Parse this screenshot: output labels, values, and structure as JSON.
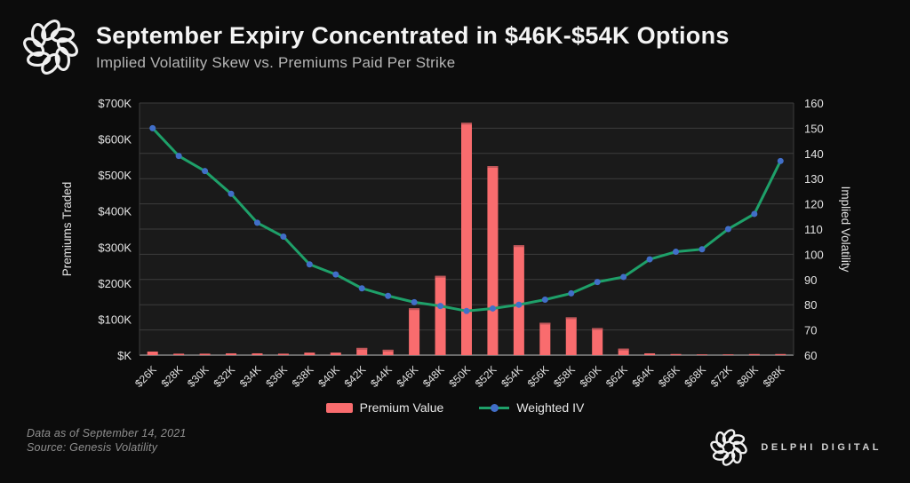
{
  "header": {
    "title": "September Expiry Concentrated in $46K-$54K Options",
    "subtitle": "Implied Volatility Skew vs. Premiums Paid Per Strike"
  },
  "legend": [
    {
      "label": "Premium Value",
      "type": "bar"
    },
    {
      "label": "Weighted IV",
      "type": "line"
    }
  ],
  "footer": {
    "note": "Data as of September 14, 2021",
    "source": "Source: Genesis Volatility",
    "brand": "DELPHI DIGITAL"
  },
  "colors": {
    "background": "#0c0c0c",
    "plot_bg": "#1a1a1a",
    "gridline": "#3c3c3c",
    "axis_line": "#8a8a8a",
    "bar": "#f96c6e",
    "bar_cap": "#bf5659",
    "line": "#1ea069",
    "marker": "#416ec8",
    "axis_text": "#e2e2e2",
    "title_text": "#f4f4f4",
    "subtitle_text": "#b5b5b5",
    "footer_text": "#8f8f8f"
  },
  "chart_data": {
    "type": "combo-bar-line",
    "title": "September Expiry Concentrated in $46K-$54K Options",
    "subtitle": "Implied Volatility Skew vs. Premiums Paid Per Strike",
    "categories": [
      "$26K",
      "$28K",
      "$30K",
      "$32K",
      "$34K",
      "$36K",
      "$38K",
      "$40K",
      "$42K",
      "$44K",
      "$46K",
      "$48K",
      "$50K",
      "$52K",
      "$54K",
      "$56K",
      "$58K",
      "$60K",
      "$62K",
      "$64K",
      "$66K",
      "$68K",
      "$72K",
      "$80K",
      "$88K"
    ],
    "series": [
      {
        "name": "Premium Value",
        "type": "bar",
        "axis": "left",
        "values": [
          10000,
          4000,
          4000,
          5000,
          5000,
          4000,
          7000,
          7000,
          20000,
          15000,
          130000,
          220000,
          645000,
          525000,
          305000,
          90000,
          105000,
          75000,
          18000,
          5000,
          3000,
          2000,
          2000,
          3000,
          3000
        ]
      },
      {
        "name": "Weighted IV",
        "type": "line",
        "axis": "right",
        "values": [
          150,
          139,
          133,
          124,
          112.5,
          107,
          96,
          92,
          86.5,
          83.5,
          81,
          79.5,
          77.5,
          78.5,
          80,
          82,
          84.5,
          89,
          91,
          98,
          101,
          102,
          110,
          116,
          137
        ]
      }
    ],
    "left_axis": {
      "title": "Premiums Traded",
      "min": 0,
      "max": 700000,
      "tick_labels": [
        "$K",
        "$100K",
        "$200K",
        "$300K",
        "$400K",
        "$500K",
        "$600K",
        "$700K"
      ],
      "tick_values": [
        0,
        100000,
        200000,
        300000,
        400000,
        500000,
        600000,
        700000
      ]
    },
    "right_axis": {
      "title": "Implied Volatility",
      "min": 60,
      "max": 160,
      "tick_step": 10
    },
    "grid": "horizontal gridlines aligned to right axis (every 10 IV)",
    "legend_position": "bottom"
  }
}
